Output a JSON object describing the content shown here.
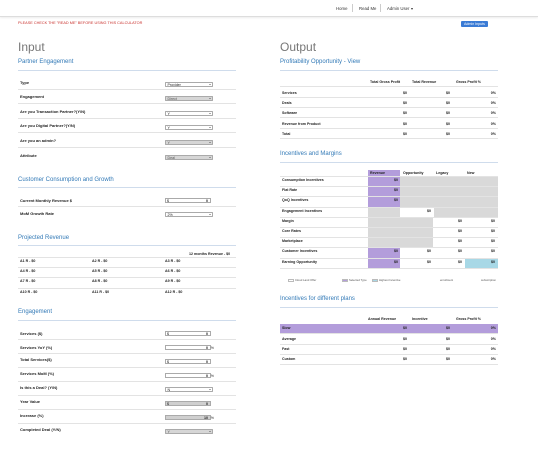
{
  "nav": {
    "home": "Home",
    "readme": "Read Me",
    "admin_user": "Admin User"
  },
  "warning": "PLEASE CHECK THE \"READ ME\" BEFORE USING THIS CALCULATOR",
  "admin_inputs": "Admin Inputs",
  "input": {
    "title": "Input",
    "partner_engagement": {
      "title": "Partner Engagement",
      "rows": [
        {
          "label": "Type",
          "value": "Provider",
          "disabled": false
        },
        {
          "label": "Engagement",
          "value": "Direct",
          "disabled": true
        },
        {
          "label": "Are you Transaction Partner?(Y/N)",
          "value": "Y",
          "disabled": false
        },
        {
          "label": "Are you Digital Partner?(Y/N)",
          "value": "Y",
          "disabled": false
        },
        {
          "label": "Are you an admin?",
          "value": "Y",
          "disabled": true
        },
        {
          "label": "Attribute",
          "value": "Deal",
          "disabled": true
        }
      ]
    },
    "consumption": {
      "title": "Customer Consumption and Growth",
      "monthly_label": "Current Monthly Revenue $",
      "monthly_prefix": "$",
      "monthly_value": "0",
      "mom_label": "MoM Growth Rate",
      "mom_value": "2%"
    },
    "projected": {
      "title": "Projected Revenue",
      "header": "12 months Revenue - $0",
      "cells": [
        "A1 R - $0",
        "A2 R - $0",
        "A3 R - $0",
        "A4 R - $0",
        "A5 R - $0",
        "A6 R - $0",
        "A7 R - $0",
        "A8 R - $0",
        "A9 R - $0",
        "A10 R - $0",
        "A11 R - $0",
        "A12 R - $0"
      ]
    },
    "engagement": {
      "title": "Engagement",
      "services_label": "Services ($)",
      "services_prefix": "$",
      "services_value": "0",
      "services_yoy_label": "Services YoY (%)",
      "services_yoy_value": "0",
      "services_yoy_suffix": "%",
      "total_services_label": "Total Services($)",
      "total_services_prefix": "$",
      "total_services_value": "0",
      "services_mom_label": "Services MoM (%)",
      "services_mom_value": "0",
      "services_mom_suffix": "%",
      "is_deal_label": "Is this a Deal? (Y/N)",
      "is_deal_value": "N",
      "year_value_label": "Year Value",
      "year_value_prefix": "$",
      "year_value_value": "0",
      "increase_label": "Increase (%)",
      "increase_value": "10",
      "increase_suffix": "%",
      "completed_deal_label": "Completed Deal (Y/N)",
      "completed_deal_value": "Y"
    }
  },
  "output": {
    "title": "Output",
    "profitability": {
      "title": "Profitability Opportunity - View",
      "headers": [
        "Total Gross Profit",
        "Total Revenue",
        "Gross Profit %"
      ],
      "rows": [
        {
          "label": "Services",
          "values": [
            "$0",
            "$0",
            "0%"
          ]
        },
        {
          "label": "Deals",
          "values": [
            "$0",
            "$0",
            "0%"
          ]
        },
        {
          "label": "Software",
          "values": [
            "$0",
            "$0",
            "0%"
          ]
        },
        {
          "label": "Revenue from Product",
          "values": [
            "$0",
            "$0",
            "0%"
          ]
        },
        {
          "label": "Total",
          "values": [
            "$0",
            "$0",
            "0%"
          ]
        }
      ]
    },
    "incentives": {
      "title": "Incentives and Margins",
      "headers": [
        "Revenue",
        "Opportunity",
        "Legacy",
        "New"
      ],
      "rows": [
        {
          "label": "Consumption Incentives",
          "values": [
            "$0",
            "",
            "",
            ""
          ]
        },
        {
          "label": "Flat Rate",
          "values": [
            "$0",
            "",
            "",
            ""
          ]
        },
        {
          "label": "QoQ Incentives",
          "values": [
            "$0",
            "",
            "",
            ""
          ]
        },
        {
          "label": "Engagement Incentives",
          "values": [
            "",
            "$0",
            "",
            ""
          ]
        },
        {
          "label": "Margin",
          "values": [
            "",
            "",
            "$0",
            "$0"
          ]
        },
        {
          "label": "Core Rates",
          "values": [
            "",
            "",
            "$0",
            "$0"
          ]
        },
        {
          "label": "Marketplace",
          "values": [
            "",
            "",
            "$0",
            "$0"
          ]
        },
        {
          "label": "Customer Incentives",
          "values": [
            "$0",
            "$0",
            "$0",
            "$0"
          ]
        },
        {
          "label": "Earning Opportunity",
          "values": [
            "$0",
            "$0",
            "$0",
            "$0"
          ]
        }
      ],
      "legend": [
        "Cloud Land Offer",
        "Selected Type",
        "Highest Incentive",
        "enrollment",
        "subscription"
      ]
    },
    "plans": {
      "title": "Incentives for different plans",
      "headers": [
        "Annual Revenue",
        "Incentive",
        "Gross Profit %"
      ],
      "rows": [
        {
          "label": "Slow",
          "values": [
            "$0",
            "$0",
            "0%"
          ]
        },
        {
          "label": "Average",
          "values": [
            "$0",
            "$0",
            "0%"
          ]
        },
        {
          "label": "Fast",
          "values": [
            "$0",
            "$0",
            "0%"
          ]
        },
        {
          "label": "Custom",
          "values": [
            "$0",
            "$0",
            "0%"
          ]
        }
      ]
    }
  },
  "colors": {
    "accent": "#337ab7",
    "highlight_purple": "#b39ddb",
    "grey": "#d9d9d9",
    "light_blue": "#a8d8e6",
    "warning": "#c9302c"
  }
}
